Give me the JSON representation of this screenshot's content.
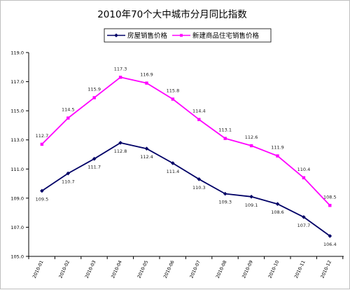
{
  "chart_data": {
    "type": "line",
    "title": "2010年70个大中城市分月同比指数",
    "categories": [
      "2010-01",
      "2010-02",
      "2010-03",
      "2010-04",
      "2010-05",
      "2010-06",
      "2010-07",
      "2010-08",
      "2010-09",
      "2010-10",
      "2010-11",
      "2010-12"
    ],
    "series": [
      {
        "name": "房屋销售价格",
        "color": "#000066",
        "marker": "diamond",
        "values": [
          109.5,
          110.7,
          111.7,
          112.8,
          112.4,
          111.4,
          110.3,
          109.3,
          109.1,
          108.6,
          107.7,
          106.4
        ],
        "labels": [
          "109.5",
          "110.7",
          "111.7",
          "112.8",
          "112.4",
          "111.4",
          "110.3",
          "109.3",
          "109.1",
          "108.6",
          "107.7",
          "106.4"
        ]
      },
      {
        "name": "新建商品住宅销售价格",
        "color": "#ff00ff",
        "marker": "square",
        "values": [
          112.7,
          114.5,
          115.9,
          117.3,
          116.9,
          115.8,
          114.4,
          113.1,
          112.6,
          111.9,
          110.4,
          108.5
        ],
        "labels": [
          "112.7",
          "114.5",
          "115.9",
          "117.3",
          "116.9",
          "115.8",
          "114.4",
          "113.1",
          "112.6",
          "111.9",
          "110.4",
          "108.5"
        ]
      }
    ],
    "yticks": [
      "105.0",
      "107.0",
      "109.0",
      "111.0",
      "113.0",
      "115.0",
      "117.0",
      "119.0"
    ],
    "ylim": [
      105,
      119
    ],
    "grid": false,
    "legend_position": "top-center"
  }
}
